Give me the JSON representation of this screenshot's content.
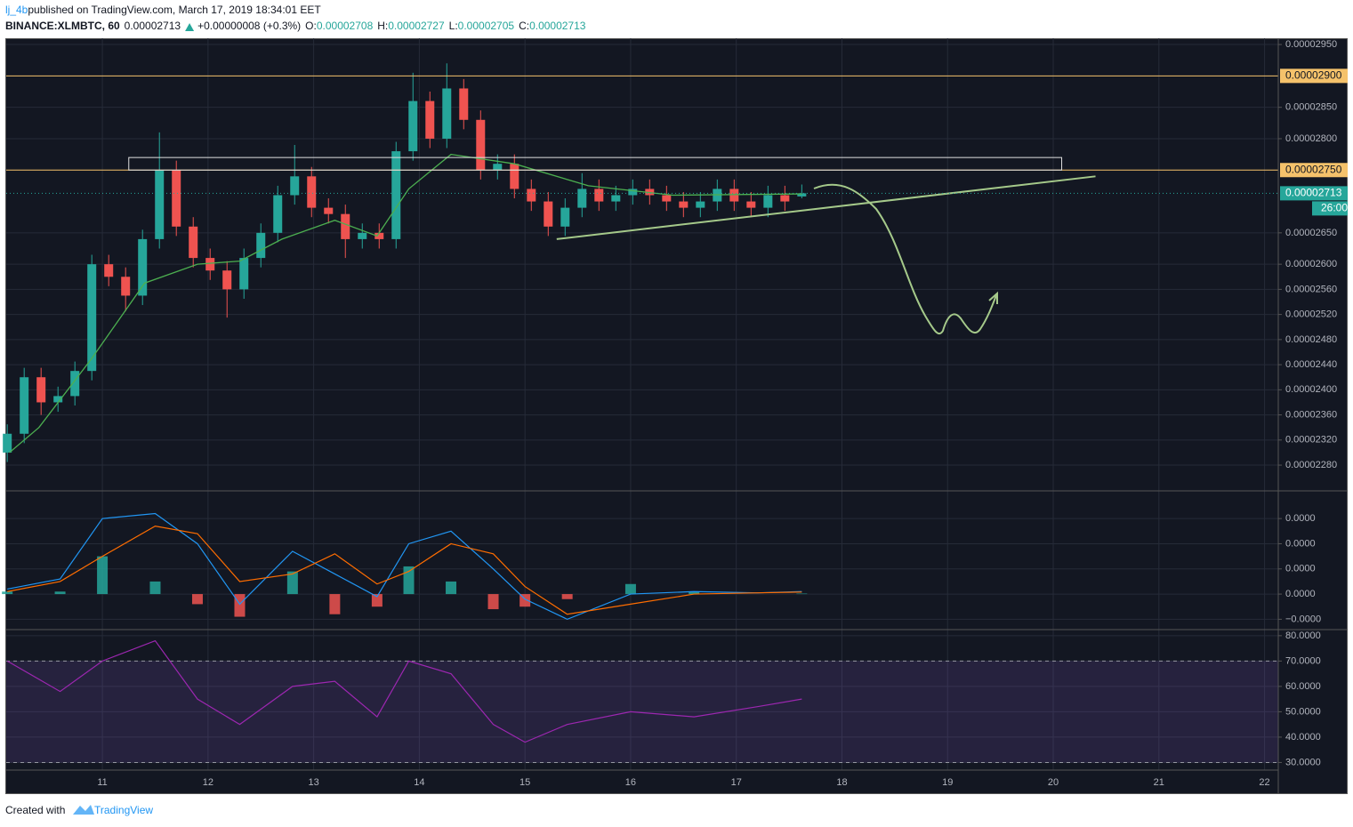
{
  "header": {
    "author": "lj_4b",
    "published": " published on TradingView.com, March 17, 2019 18:34:01 EET",
    "symbol": "BINANCE:XLMBTC, 60",
    "last": "0.00002713",
    "change": "+0.00000008 (+0.3%)",
    "ohlc": [
      {
        "key": "O:",
        "value": "0.00002708"
      },
      {
        "key": "H:",
        "value": "0.00002727"
      },
      {
        "key": "L:",
        "value": "0.00002705"
      },
      {
        "key": "C:",
        "value": "0.00002713"
      }
    ]
  },
  "footer": {
    "created": "Created with",
    "brand": "TradingView"
  },
  "chart_data": [
    {
      "type": "candlestick",
      "xlim": [
        10.09,
        22.13
      ],
      "ylim": [
        2.239e-05,
        2.96e-05
      ],
      "grid": true,
      "up_color": "#26a69a",
      "down_color": "#ef5350",
      "yticks": [
        {
          "value": 2.95e-05,
          "label": "0.00002950"
        },
        {
          "value": 2.85e-05,
          "label": "0.00002850"
        },
        {
          "value": 2.8e-05,
          "label": "0.00002800"
        },
        {
          "value": 2.65e-05,
          "label": "0.00002650"
        },
        {
          "value": 2.6e-05,
          "label": "0.00002600"
        },
        {
          "value": 2.56e-05,
          "label": "0.00002560"
        },
        {
          "value": 2.52e-05,
          "label": "0.00002520"
        },
        {
          "value": 2.48e-05,
          "label": "0.00002480"
        },
        {
          "value": 2.44e-05,
          "label": "0.00002440"
        },
        {
          "value": 2.4e-05,
          "label": "0.00002400"
        },
        {
          "value": 2.36e-05,
          "label": "0.00002360"
        },
        {
          "value": 2.32e-05,
          "label": "0.00002320"
        },
        {
          "value": 2.28e-05,
          "label": "0.00002280"
        }
      ],
      "x": [
        10.1,
        10.26,
        10.42,
        10.58,
        10.74,
        10.9,
        11.06,
        11.22,
        11.38,
        11.54,
        11.7,
        11.86,
        12.02,
        12.18,
        12.34,
        12.5,
        12.66,
        12.82,
        12.98,
        13.14,
        13.3,
        13.46,
        13.62,
        13.78,
        13.94,
        14.1,
        14.26,
        14.42,
        14.58,
        14.74,
        14.9,
        15.06,
        15.22,
        15.38,
        15.54,
        15.7,
        15.86,
        16.02,
        16.18,
        16.34,
        16.5,
        16.66,
        16.82,
        16.98,
        17.14,
        17.3,
        17.46,
        17.62
      ],
      "open": [
        2.3e-05,
        2.33e-05,
        2.42e-05,
        2.38e-05,
        2.39e-05,
        2.43e-05,
        2.6e-05,
        2.58e-05,
        2.55e-05,
        2.64e-05,
        2.75e-05,
        2.66e-05,
        2.61e-05,
        2.59e-05,
        2.56e-05,
        2.61e-05,
        2.65e-05,
        2.71e-05,
        2.74e-05,
        2.69e-05,
        2.68e-05,
        2.64e-05,
        2.65e-05,
        2.64e-05,
        2.78e-05,
        2.86e-05,
        2.8e-05,
        2.88e-05,
        2.83e-05,
        2.75e-05,
        2.76e-05,
        2.72e-05,
        2.7e-05,
        2.66e-05,
        2.69e-05,
        2.72e-05,
        2.7e-05,
        2.71e-05,
        2.72e-05,
        2.71e-05,
        2.7e-05,
        2.69e-05,
        2.7e-05,
        2.72e-05,
        2.7e-05,
        2.69e-05,
        2.71e-05,
        2.708e-05
      ],
      "high": [
        2.345e-05,
        2.435e-05,
        2.435e-05,
        2.405e-05,
        2.445e-05,
        2.615e-05,
        2.615e-05,
        2.595e-05,
        2.655e-05,
        2.81e-05,
        2.765e-05,
        2.675e-05,
        2.625e-05,
        2.605e-05,
        2.625e-05,
        2.665e-05,
        2.725e-05,
        2.79e-05,
        2.755e-05,
        2.705e-05,
        2.695e-05,
        2.665e-05,
        2.665e-05,
        2.795e-05,
        2.905e-05,
        2.875e-05,
        2.92e-05,
        2.895e-05,
        2.845e-05,
        2.775e-05,
        2.775e-05,
        2.735e-05,
        2.715e-05,
        2.705e-05,
        2.745e-05,
        2.735e-05,
        2.725e-05,
        2.735e-05,
        2.735e-05,
        2.725e-05,
        2.715e-05,
        2.715e-05,
        2.735e-05,
        2.735e-05,
        2.715e-05,
        2.725e-05,
        2.725e-05,
        2.727e-05
      ],
      "low": [
        2.285e-05,
        2.315e-05,
        2.36e-05,
        2.365e-05,
        2.375e-05,
        2.415e-05,
        2.565e-05,
        2.525e-05,
        2.535e-05,
        2.625e-05,
        2.645e-05,
        2.595e-05,
        2.575e-05,
        2.515e-05,
        2.545e-05,
        2.595e-05,
        2.635e-05,
        2.695e-05,
        2.675e-05,
        2.665e-05,
        2.61e-05,
        2.625e-05,
        2.625e-05,
        2.625e-05,
        2.765e-05,
        2.785e-05,
        2.785e-05,
        2.815e-05,
        2.735e-05,
        2.735e-05,
        2.705e-05,
        2.685e-05,
        2.645e-05,
        2.645e-05,
        2.675e-05,
        2.685e-05,
        2.685e-05,
        2.695e-05,
        2.695e-05,
        2.685e-05,
        2.675e-05,
        2.675e-05,
        2.685e-05,
        2.685e-05,
        2.675e-05,
        2.675e-05,
        2.685e-05,
        2.705e-05
      ],
      "close": [
        2.33e-05,
        2.42e-05,
        2.38e-05,
        2.39e-05,
        2.43e-05,
        2.6e-05,
        2.58e-05,
        2.55e-05,
        2.64e-05,
        2.75e-05,
        2.66e-05,
        2.61e-05,
        2.59e-05,
        2.56e-05,
        2.61e-05,
        2.65e-05,
        2.71e-05,
        2.74e-05,
        2.69e-05,
        2.68e-05,
        2.64e-05,
        2.65e-05,
        2.64e-05,
        2.78e-05,
        2.86e-05,
        2.8e-05,
        2.88e-05,
        2.83e-05,
        2.75e-05,
        2.76e-05,
        2.72e-05,
        2.7e-05,
        2.66e-05,
        2.69e-05,
        2.72e-05,
        2.7e-05,
        2.71e-05,
        2.72e-05,
        2.71e-05,
        2.7e-05,
        2.69e-05,
        2.7e-05,
        2.72e-05,
        2.7e-05,
        2.69e-05,
        2.71e-05,
        2.7e-05,
        2.713e-05
      ],
      "ma": {
        "color": "#4caf50",
        "x": [
          10.12,
          10.4,
          10.9,
          11.4,
          11.9,
          12.3,
          12.7,
          13.2,
          13.6,
          13.9,
          14.3,
          14.9,
          15.6,
          16.4,
          17.62
        ],
        "values": [
          2.3e-05,
          2.34e-05,
          2.45e-05,
          2.57e-05,
          2.6e-05,
          2.605e-05,
          2.64e-05,
          2.67e-05,
          2.645e-05,
          2.72e-05,
          2.775e-05,
          2.76e-05,
          2.725e-05,
          2.71e-05,
          2.712e-05
        ]
      },
      "price_lines": [
        {
          "value": 2.9e-05,
          "label": "0.00002900",
          "color": "#f5c26b"
        },
        {
          "value": 2.75e-05,
          "label": "0.00002750",
          "color": "#f5c26b"
        }
      ],
      "last_price": {
        "value": 2.713e-05,
        "label": "0.00002713",
        "countdown": "26:00",
        "color": "#26a69a"
      },
      "rectangle": {
        "x": [
          11.25,
          20.08
        ],
        "y": [
          2.75e-05,
          2.77e-05
        ],
        "color": "#e0e0e0"
      },
      "trendline": {
        "x": [
          15.3,
          20.4
        ],
        "y": [
          2.64e-05,
          2.74e-05
        ],
        "color": "#a5c98a"
      }
    },
    {
      "type": "macd",
      "xlim": [
        10.09,
        22.13
      ],
      "ylim": [
        -1.41e-07,
        4.1e-07
      ],
      "grid": true,
      "yticks": [
        {
          "value": 3e-07,
          "label": "0.0000"
        },
        {
          "value": 2e-07,
          "label": "0.0000"
        },
        {
          "value": 1e-07,
          "label": "0.0000"
        },
        {
          "value": 0,
          "label": "0.0000"
        },
        {
          "value": -1e-07,
          "label": "−0.0000"
        }
      ],
      "x": [
        10.1,
        10.6,
        11.0,
        11.5,
        11.9,
        12.3,
        12.8,
        13.2,
        13.6,
        13.9,
        14.3,
        14.7,
        15.0,
        15.4,
        16.0,
        16.6,
        17.2,
        17.62
      ],
      "macd": {
        "color": "#2196f3",
        "values": [
          2e-08,
          6e-08,
          3e-07,
          3.2e-07,
          2e-07,
          -4e-08,
          1.7e-07,
          8e-08,
          -1e-08,
          2e-07,
          2.5e-07,
          1e-07,
          -2e-08,
          -1e-07,
          0,
          1e-08,
          5e-09,
          1e-08
        ]
      },
      "signal": {
        "color": "#ff6d00",
        "values": [
          1e-08,
          5e-08,
          1.5e-07,
          2.7e-07,
          2.4e-07,
          5e-08,
          8e-08,
          1.6e-07,
          4e-08,
          9e-08,
          2e-07,
          1.6e-07,
          3e-08,
          -8e-08,
          -4e-08,
          0,
          5e-09,
          8e-09
        ]
      },
      "histogram": {
        "up_color": "#26a69a",
        "down_color": "#ef5350",
        "values": [
          1e-08,
          1e-08,
          1.5e-07,
          5e-08,
          -4e-08,
          -9e-08,
          9e-08,
          -8e-08,
          -5e-08,
          1.1e-07,
          5e-08,
          -6e-08,
          -5e-08,
          -2e-08,
          4e-08,
          1e-08,
          0,
          2e-09
        ]
      }
    },
    {
      "type": "line",
      "xlim": [
        10.09,
        22.13
      ],
      "ylim": [
        27,
        82.4
      ],
      "grid": true,
      "color": "#9c27b0",
      "band_color": "#7e57c2",
      "levels": [
        70,
        30
      ],
      "yticks": [
        {
          "value": 80,
          "label": "80.0000"
        },
        {
          "value": 70,
          "label": "70.0000"
        },
        {
          "value": 60,
          "label": "60.0000"
        },
        {
          "value": 50,
          "label": "50.0000"
        },
        {
          "value": 40,
          "label": "40.0000"
        },
        {
          "value": 30,
          "label": "30.0000"
        }
      ],
      "xticks": [
        11,
        12,
        13,
        14,
        15,
        16,
        17,
        18,
        19,
        20,
        21,
        22
      ],
      "x": [
        10.1,
        10.6,
        11.0,
        11.5,
        11.9,
        12.3,
        12.8,
        13.2,
        13.6,
        13.9,
        14.3,
        14.7,
        15.0,
        15.4,
        16.0,
        16.6,
        17.2,
        17.62
      ],
      "values": [
        70,
        58,
        70,
        78,
        55,
        45,
        60,
        62,
        48,
        70,
        65,
        45,
        38,
        45,
        50,
        48,
        52,
        55
      ]
    }
  ]
}
